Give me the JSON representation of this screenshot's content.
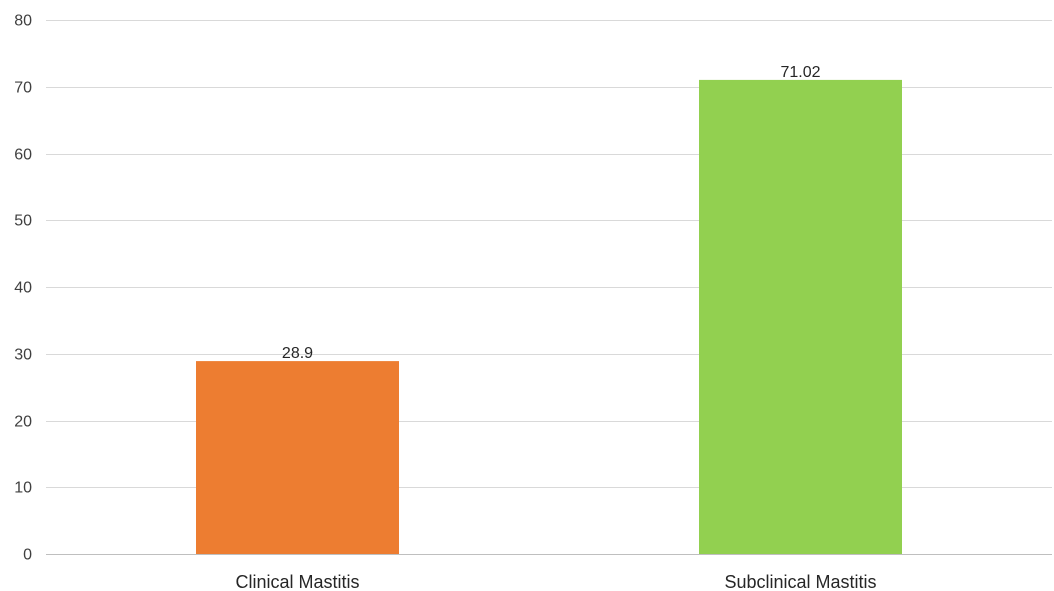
{
  "chart_data": {
    "type": "bar",
    "categories": [
      "Clinical Mastitis",
      "Subclinical Mastitis"
    ],
    "values": [
      28.9,
      71.02
    ],
    "data_labels": [
      "28.9",
      "71.02"
    ],
    "bar_colors": [
      "#ed7d31",
      "#92d050"
    ],
    "title": "",
    "xlabel": "",
    "ylabel": "",
    "ylim": [
      0,
      80
    ],
    "yticks": [
      0,
      10,
      20,
      30,
      40,
      50,
      60,
      70,
      80
    ],
    "grid": true,
    "legend": "none"
  }
}
